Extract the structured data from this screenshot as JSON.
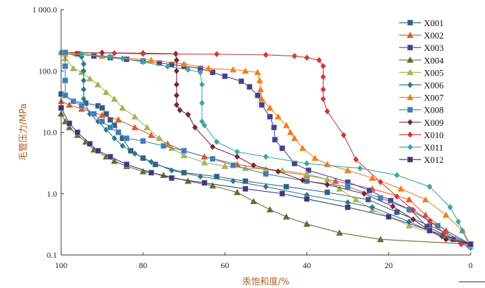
{
  "chart_data": {
    "type": "line",
    "title": "",
    "xlabel": "汞饱和度/%",
    "ylabel": "毛管压力/MPa",
    "xlim": [
      100,
      0
    ],
    "ylim": [
      0.1,
      1000
    ],
    "yscale": "log",
    "x_ticks": [
      "100",
      "80",
      "60",
      "40",
      "20",
      "0"
    ],
    "x_tick_values": [
      100,
      80,
      60,
      40,
      20,
      0
    ],
    "y_ticks": [
      "1 000.0",
      "100.0",
      "10.0",
      "1.0",
      "0.1"
    ],
    "y_tick_values": [
      1000,
      100,
      10,
      1,
      0.1
    ],
    "grid": false,
    "legend": "right",
    "series": [
      {
        "name": "X001",
        "color": "#2f5f86",
        "marker": "square",
        "points": [
          [
            100,
            42
          ],
          [
            97,
            32
          ],
          [
            94,
            30
          ],
          [
            91,
            27
          ],
          [
            90,
            25
          ],
          [
            89,
            20
          ],
          [
            88,
            16
          ],
          [
            87,
            13
          ],
          [
            86,
            10
          ],
          [
            85,
            8
          ],
          [
            83,
            5
          ],
          [
            80,
            3.8
          ],
          [
            77,
            3.0
          ],
          [
            70,
            2.2
          ],
          [
            62,
            1.9
          ],
          [
            55,
            1.6
          ],
          [
            45,
            1.3
          ],
          [
            35,
            1.05
          ],
          [
            25,
            0.8
          ],
          [
            18,
            0.5
          ],
          [
            10,
            0.3
          ],
          [
            0,
            0.15
          ]
        ]
      },
      {
        "name": "X002",
        "color": "#e05a2b",
        "marker": "triangle",
        "points": [
          [
            100,
            32
          ],
          [
            98,
            28
          ],
          [
            95,
            24
          ],
          [
            90,
            19
          ],
          [
            86,
            16
          ],
          [
            82,
            12
          ],
          [
            78,
            9
          ],
          [
            74,
            6.5
          ],
          [
            70,
            5
          ],
          [
            65,
            4
          ],
          [
            57,
            3.0
          ],
          [
            50,
            2.5
          ],
          [
            40,
            2.0
          ],
          [
            33,
            1.6
          ],
          [
            24,
            1.2
          ],
          [
            15,
            0.8
          ],
          [
            11,
            0.45
          ],
          [
            6,
            0.25
          ],
          [
            0,
            0.15
          ]
        ]
      },
      {
        "name": "X003",
        "color": "#4a3f8c",
        "marker": "square",
        "points": [
          [
            99,
            200
          ],
          [
            96,
            190
          ],
          [
            92,
            175
          ],
          [
            88,
            165
          ],
          [
            84,
            155
          ],
          [
            80,
            145
          ],
          [
            76,
            135
          ],
          [
            73,
            128
          ],
          [
            70,
            120
          ],
          [
            66,
            110
          ],
          [
            63,
            95
          ],
          [
            60,
            82
          ],
          [
            56,
            68
          ],
          [
            54,
            55
          ],
          [
            52,
            40
          ],
          [
            51,
            28
          ],
          [
            49,
            18
          ],
          [
            48,
            12
          ],
          [
            47.8,
            7.6
          ],
          [
            46,
            5.5
          ],
          [
            43,
            3.1
          ],
          [
            39.6,
            2.4
          ],
          [
            30,
            1.54
          ],
          [
            24.7,
            1.13
          ],
          [
            19.5,
            0.77
          ],
          [
            14.6,
            0.54
          ],
          [
            10.6,
            0.29
          ],
          [
            4.2,
            0.18
          ],
          [
            0,
            0.15
          ]
        ]
      },
      {
        "name": "X004",
        "color": "#5f7030",
        "marker": "triangle",
        "points": [
          [
            100,
            20
          ],
          [
            99,
            15
          ],
          [
            98,
            12
          ],
          [
            96,
            9
          ],
          [
            94,
            7
          ],
          [
            92,
            5.2
          ],
          [
            89,
            4
          ],
          [
            87,
            3.4
          ],
          [
            84,
            2.8
          ],
          [
            80,
            2.3
          ],
          [
            75,
            2.0
          ],
          [
            69,
            1.6
          ],
          [
            63,
            1.35
          ],
          [
            57,
            1.05
          ],
          [
            53,
            0.75
          ],
          [
            49,
            0.55
          ],
          [
            45,
            0.42
          ],
          [
            40,
            0.32
          ],
          [
            32,
            0.23
          ],
          [
            22,
            0.18
          ],
          [
            0,
            0.15
          ]
        ]
      },
      {
        "name": "X005",
        "color": "#a6b45a",
        "marker": "triangle",
        "points": [
          [
            100,
            200
          ],
          [
            99,
            160
          ],
          [
            97,
            110
          ],
          [
            95,
            95
          ],
          [
            93,
            75
          ],
          [
            91,
            60
          ],
          [
            89,
            45
          ],
          [
            87,
            35
          ],
          [
            85,
            25
          ],
          [
            82,
            18
          ],
          [
            79,
            12
          ],
          [
            76,
            8
          ],
          [
            73,
            5.5
          ],
          [
            70,
            4.2
          ],
          [
            65,
            3.2
          ],
          [
            60,
            2.8
          ],
          [
            55,
            2.6
          ],
          [
            50,
            2.5
          ],
          [
            46,
            2.4
          ],
          [
            40,
            2.1
          ],
          [
            35,
            1.7
          ],
          [
            32,
            1.2
          ],
          [
            28,
            0.8
          ],
          [
            24,
            0.55
          ],
          [
            15,
            0.3
          ],
          [
            0,
            0.15
          ]
        ]
      },
      {
        "name": "X006",
        "color": "#2b7a8a",
        "marker": "diamond",
        "points": [
          [
            100,
            200
          ],
          [
            95,
            170
          ],
          [
            94.5,
            130
          ],
          [
            94.5,
            100
          ],
          [
            94.5,
            70
          ],
          [
            94.5,
            50
          ],
          [
            94.5,
            35
          ],
          [
            93,
            20
          ],
          [
            91,
            15
          ],
          [
            89,
            11
          ],
          [
            87,
            8
          ],
          [
            85,
            6
          ],
          [
            82,
            4.5
          ],
          [
            78,
            3.3
          ],
          [
            73,
            2.4
          ],
          [
            66,
            1.9
          ],
          [
            58,
            1.6
          ],
          [
            50,
            1.3
          ],
          [
            40,
            0.95
          ],
          [
            30,
            0.72
          ],
          [
            24,
            0.6
          ],
          [
            15,
            0.35
          ],
          [
            7,
            0.2
          ],
          [
            0,
            0.15
          ]
        ]
      },
      {
        "name": "X007",
        "color": "#f08020",
        "marker": "triangle",
        "points": [
          [
            99,
            190
          ],
          [
            90,
            175
          ],
          [
            78,
            150
          ],
          [
            70,
            130
          ],
          [
            64,
            110
          ],
          [
            58,
            105
          ],
          [
            55,
            100
          ],
          [
            52,
            95
          ],
          [
            51.5,
            70
          ],
          [
            51.3,
            50
          ],
          [
            51,
            35
          ],
          [
            49,
            25
          ],
          [
            47,
            18
          ],
          [
            45,
            13
          ],
          [
            44,
            10
          ],
          [
            43,
            8
          ],
          [
            41,
            5.5
          ],
          [
            38,
            3.8
          ],
          [
            35,
            3.0
          ],
          [
            30,
            2.4
          ],
          [
            24,
            1.8
          ],
          [
            17,
            1.2
          ],
          [
            11,
            0.8
          ],
          [
            6,
            0.45
          ],
          [
            2,
            0.25
          ],
          [
            0,
            0.15
          ]
        ]
      },
      {
        "name": "X008",
        "color": "#3c7fb8",
        "marker": "square",
        "points": [
          [
            99,
            200
          ],
          [
            99,
            120
          ],
          [
            99,
            70
          ],
          [
            99,
            40
          ],
          [
            97,
            32
          ],
          [
            95,
            27
          ],
          [
            92,
            20
          ],
          [
            90,
            15
          ],
          [
            88,
            12
          ],
          [
            86,
            10
          ],
          [
            84,
            8
          ],
          [
            80,
            7.2
          ],
          [
            75,
            6
          ],
          [
            70,
            5
          ],
          [
            63,
            3.7
          ],
          [
            58,
            2.9
          ],
          [
            50,
            2.1
          ],
          [
            40,
            1.6
          ],
          [
            30,
            1.3
          ],
          [
            22,
            0.85
          ],
          [
            15,
            0.55
          ],
          [
            8,
            0.3
          ],
          [
            0,
            0.15
          ]
        ]
      },
      {
        "name": "X009",
        "color": "#7a2535",
        "marker": "diamond",
        "points": [
          [
            100,
            200
          ],
          [
            90,
            198
          ],
          [
            80,
            195
          ],
          [
            72,
            190
          ],
          [
            71.8,
            150
          ],
          [
            71.8,
            100
          ],
          [
            71.8,
            60
          ],
          [
            71.8,
            40
          ],
          [
            71.8,
            28
          ],
          [
            71,
            23
          ],
          [
            69,
            19.5
          ],
          [
            67.3,
            12
          ],
          [
            63,
            5.8
          ],
          [
            57,
            4.0
          ],
          [
            53,
            2.9
          ],
          [
            47,
            2.3
          ],
          [
            41,
            1.65
          ],
          [
            35,
            1.4
          ],
          [
            26,
            1.0
          ],
          [
            19,
            0.62
          ],
          [
            14,
            0.38
          ],
          [
            10,
            0.25
          ],
          [
            6,
            0.18
          ],
          [
            0,
            0.15
          ]
        ]
      },
      {
        "name": "X010",
        "color": "#d03a3a",
        "marker": "diamond",
        "points": [
          [
            100,
            200
          ],
          [
            87,
            195
          ],
          [
            80,
            190
          ],
          [
            62,
            188
          ],
          [
            50,
            183
          ],
          [
            43,
            175
          ],
          [
            40,
            165
          ],
          [
            37,
            150
          ],
          [
            36,
            120
          ],
          [
            36,
            80
          ],
          [
            36,
            50
          ],
          [
            36,
            35
          ],
          [
            35,
            22
          ],
          [
            31,
            9
          ],
          [
            28,
            3.6
          ],
          [
            22,
            1.55
          ],
          [
            18,
            0.9
          ],
          [
            14,
            0.54
          ],
          [
            10,
            0.36
          ],
          [
            6.5,
            0.23
          ],
          [
            2.3,
            0.15
          ],
          [
            0.5,
            0.14
          ]
        ]
      },
      {
        "name": "X011",
        "color": "#3aa8a0",
        "marker": "diamond",
        "points": [
          [
            100,
            200
          ],
          [
            95,
            190
          ],
          [
            88,
            170
          ],
          [
            85,
            160
          ],
          [
            80,
            140
          ],
          [
            74,
            118
          ],
          [
            69,
            105
          ],
          [
            66,
            95
          ],
          [
            65.6,
            60
          ],
          [
            65.6,
            30
          ],
          [
            65.6,
            15
          ],
          [
            65,
            13
          ],
          [
            62,
            7
          ],
          [
            57,
            4.8
          ],
          [
            50,
            4.0
          ],
          [
            40,
            3.1
          ],
          [
            27,
            2.6
          ],
          [
            18,
            2.0
          ],
          [
            10,
            1.3
          ],
          [
            5,
            0.6
          ],
          [
            3,
            0.35
          ],
          [
            2,
            0.25
          ],
          [
            0,
            0.13
          ]
        ]
      },
      {
        "name": "X012",
        "color": "#3d3a7a",
        "marker": "square",
        "points": [
          [
            100,
            25
          ],
          [
            98,
            14
          ],
          [
            96,
            10
          ],
          [
            93,
            6.5
          ],
          [
            91,
            5
          ],
          [
            88,
            4
          ],
          [
            84,
            3
          ],
          [
            78,
            2.2
          ],
          [
            73,
            1.8
          ],
          [
            65,
            1.5
          ],
          [
            55,
            1.2
          ],
          [
            46,
            1.0
          ],
          [
            40,
            0.82
          ],
          [
            30,
            0.6
          ],
          [
            20,
            0.42
          ],
          [
            10,
            0.25
          ],
          [
            0,
            0.15
          ]
        ]
      }
    ]
  }
}
